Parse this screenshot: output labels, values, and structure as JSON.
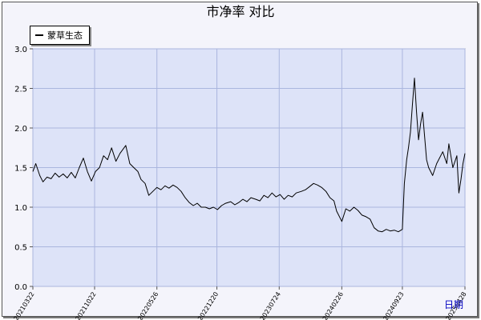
{
  "chart_data": {
    "type": "line",
    "title": "市净率  对比",
    "xlabel": "",
    "ylabel": "",
    "ylim": [
      0.0,
      3.0
    ],
    "yticks": [
      "0.0",
      "0.5",
      "1.0",
      "1.5",
      "2.0",
      "2.5",
      "3.0"
    ],
    "xticks": [
      "20210322",
      "20211022",
      "20220526",
      "20221220",
      "20230724",
      "20240226",
      "20240923",
      "20250428"
    ],
    "legend_position": "top-left",
    "grid": true,
    "series": [
      {
        "name": "蒙草生态",
        "color": "#000000",
        "points": [
          [
            "2021-03-22",
            1.45
          ],
          [
            "2021-04-01",
            1.55
          ],
          [
            "2021-04-15",
            1.4
          ],
          [
            "2021-04-26",
            1.32
          ],
          [
            "2021-05-10",
            1.38
          ],
          [
            "2021-05-24",
            1.36
          ],
          [
            "2021-06-07",
            1.43
          ],
          [
            "2021-06-21",
            1.38
          ],
          [
            "2021-07-05",
            1.42
          ],
          [
            "2021-07-19",
            1.37
          ],
          [
            "2021-08-02",
            1.44
          ],
          [
            "2021-08-16",
            1.37
          ],
          [
            "2021-08-30",
            1.5
          ],
          [
            "2021-09-13",
            1.62
          ],
          [
            "2021-09-27",
            1.45
          ],
          [
            "2021-10-11",
            1.33
          ],
          [
            "2021-10-25",
            1.45
          ],
          [
            "2021-11-08",
            1.5
          ],
          [
            "2021-11-22",
            1.65
          ],
          [
            "2021-12-06",
            1.6
          ],
          [
            "2021-12-20",
            1.75
          ],
          [
            "2022-01-04",
            1.58
          ],
          [
            "2022-01-18",
            1.68
          ],
          [
            "2022-02-07",
            1.78
          ],
          [
            "2022-02-21",
            1.55
          ],
          [
            "2022-03-07",
            1.5
          ],
          [
            "2022-03-21",
            1.45
          ],
          [
            "2022-04-01",
            1.35
          ],
          [
            "2022-04-15",
            1.3
          ],
          [
            "2022-04-28",
            1.15
          ],
          [
            "2022-05-12",
            1.2
          ],
          [
            "2022-05-26",
            1.25
          ],
          [
            "2022-06-09",
            1.22
          ],
          [
            "2022-06-23",
            1.27
          ],
          [
            "2022-07-07",
            1.24
          ],
          [
            "2022-07-21",
            1.28
          ],
          [
            "2022-08-04",
            1.25
          ],
          [
            "2022-08-18",
            1.2
          ],
          [
            "2022-09-01",
            1.12
          ],
          [
            "2022-09-15",
            1.06
          ],
          [
            "2022-09-29",
            1.02
          ],
          [
            "2022-10-13",
            1.05
          ],
          [
            "2022-10-27",
            1.0
          ],
          [
            "2022-11-10",
            1.0
          ],
          [
            "2022-11-24",
            0.98
          ],
          [
            "2022-12-08",
            1.0
          ],
          [
            "2022-12-22",
            0.97
          ],
          [
            "2023-01-05",
            1.02
          ],
          [
            "2023-01-19",
            1.05
          ],
          [
            "2023-02-06",
            1.07
          ],
          [
            "2023-02-20",
            1.03
          ],
          [
            "2023-03-06",
            1.06
          ],
          [
            "2023-03-20",
            1.1
          ],
          [
            "2023-04-03",
            1.07
          ],
          [
            "2023-04-17",
            1.12
          ],
          [
            "2023-05-04",
            1.1
          ],
          [
            "2023-05-18",
            1.08
          ],
          [
            "2023-06-01",
            1.15
          ],
          [
            "2023-06-15",
            1.12
          ],
          [
            "2023-06-29",
            1.18
          ],
          [
            "2023-07-13",
            1.13
          ],
          [
            "2023-07-27",
            1.16
          ],
          [
            "2023-08-10",
            1.1
          ],
          [
            "2023-08-24",
            1.15
          ],
          [
            "2023-09-07",
            1.13
          ],
          [
            "2023-09-21",
            1.18
          ],
          [
            "2023-10-09",
            1.2
          ],
          [
            "2023-10-23",
            1.22
          ],
          [
            "2023-11-06",
            1.26
          ],
          [
            "2023-11-20",
            1.3
          ],
          [
            "2023-12-04",
            1.28
          ],
          [
            "2023-12-18",
            1.25
          ],
          [
            "2024-01-02",
            1.2
          ],
          [
            "2024-01-16",
            1.12
          ],
          [
            "2024-01-30",
            1.08
          ],
          [
            "2024-02-08",
            0.95
          ],
          [
            "2024-02-26",
            0.82
          ],
          [
            "2024-03-11",
            0.98
          ],
          [
            "2024-03-25",
            0.95
          ],
          [
            "2024-04-08",
            1.0
          ],
          [
            "2024-04-22",
            0.96
          ],
          [
            "2024-05-06",
            0.9
          ],
          [
            "2024-05-20",
            0.88
          ],
          [
            "2024-06-03",
            0.85
          ],
          [
            "2024-06-17",
            0.74
          ],
          [
            "2024-07-01",
            0.7
          ],
          [
            "2024-07-15",
            0.69
          ],
          [
            "2024-07-29",
            0.72
          ],
          [
            "2024-08-12",
            0.7
          ],
          [
            "2024-08-26",
            0.71
          ],
          [
            "2024-09-09",
            0.69
          ],
          [
            "2024-09-23",
            0.72
          ],
          [
            "2024-09-30",
            1.3
          ],
          [
            "2024-10-08",
            1.6
          ],
          [
            "2024-10-14",
            1.75
          ],
          [
            "2024-10-21",
            1.95
          ],
          [
            "2024-10-28",
            2.3
          ],
          [
            "2024-11-04",
            2.63
          ],
          [
            "2024-11-11",
            2.2
          ],
          [
            "2024-11-18",
            1.85
          ],
          [
            "2024-11-25",
            2.05
          ],
          [
            "2024-12-02",
            2.2
          ],
          [
            "2024-12-09",
            1.9
          ],
          [
            "2024-12-16",
            1.6
          ],
          [
            "2024-12-23",
            1.5
          ],
          [
            "2025-01-06",
            1.4
          ],
          [
            "2025-01-20",
            1.55
          ],
          [
            "2025-02-10",
            1.7
          ],
          [
            "2025-02-24",
            1.55
          ],
          [
            "2025-03-03",
            1.8
          ],
          [
            "2025-03-17",
            1.5
          ],
          [
            "2025-03-31",
            1.65
          ],
          [
            "2025-04-07",
            1.18
          ],
          [
            "2025-04-14",
            1.35
          ],
          [
            "2025-04-21",
            1.55
          ],
          [
            "2025-04-28",
            1.68
          ]
        ]
      }
    ]
  },
  "corner_label": "日期"
}
